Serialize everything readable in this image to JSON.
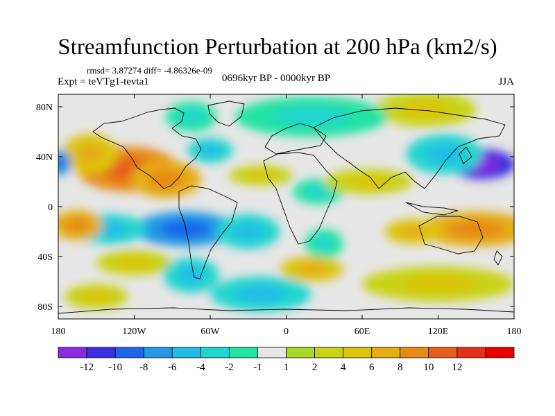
{
  "chart_data": {
    "type": "contour-map",
    "title": "Streamfunction Perturbation at 200 hPa (km2/s)",
    "stats_text": "rmsd= 3.87274 diff= -4.86326e-09",
    "experiment_text": "Expt = teVTg1-tevta1",
    "period_text": "0696kyr BP - 0000kyr BP",
    "season_text": "JJA",
    "projection": "cylindrical equidistant",
    "xlim": [
      -180,
      180
    ],
    "ylim": [
      -90,
      90
    ],
    "x_ticks": [
      {
        "value": -180,
        "label": "180"
      },
      {
        "value": -120,
        "label": "120W"
      },
      {
        "value": -60,
        "label": "60W"
      },
      {
        "value": 0,
        "label": "0"
      },
      {
        "value": 60,
        "label": "60E"
      },
      {
        "value": 120,
        "label": "120E"
      },
      {
        "value": 180,
        "label": "180"
      }
    ],
    "y_ticks": [
      {
        "value": 80,
        "label": "80N"
      },
      {
        "value": 40,
        "label": "40N"
      },
      {
        "value": 0,
        "label": "0"
      },
      {
        "value": -40,
        "label": "40S"
      },
      {
        "value": -80,
        "label": "80S"
      }
    ],
    "colorbar": {
      "colors": [
        "#8a2be2",
        "#3a2fe0",
        "#1e64e8",
        "#2398e6",
        "#21bce6",
        "#20d6cf",
        "#21e3a3",
        "#e6e6e6",
        "#a8d92a",
        "#c8d318",
        "#dcc50f",
        "#e5ad12",
        "#e68a14",
        "#e6601c",
        "#e42f1a",
        "#e60000"
      ],
      "labels": [
        "-12",
        "-10",
        "-8",
        "-6",
        "-4",
        "-2",
        "-1",
        "1",
        "2",
        "4",
        "6",
        "8",
        "10",
        "12"
      ]
    },
    "anomalies": [
      {
        "lon": -125,
        "lat": 30,
        "value": 9,
        "rx": 40,
        "ry": 18
      },
      {
        "lon": -95,
        "lat": 22,
        "value": 6,
        "rx": 28,
        "ry": 15
      },
      {
        "lon": -155,
        "lat": 42,
        "value": 4,
        "rx": 22,
        "ry": 16
      },
      {
        "lon": 155,
        "lat": 34,
        "value": -12,
        "rx": 26,
        "ry": 12
      },
      {
        "lon": -178,
        "lat": 35,
        "value": -8,
        "rx": 8,
        "ry": 10
      },
      {
        "lon": 125,
        "lat": 42,
        "value": -3,
        "rx": 30,
        "ry": 16
      },
      {
        "lon": 110,
        "lat": 78,
        "value": 3,
        "rx": 40,
        "ry": 14
      },
      {
        "lon": 20,
        "lat": 72,
        "value": -2,
        "rx": 60,
        "ry": 16
      },
      {
        "lon": -75,
        "lat": 72,
        "value": -2,
        "rx": 20,
        "ry": 12
      },
      {
        "lon": -60,
        "lat": 45,
        "value": -3,
        "rx": 18,
        "ry": 10
      },
      {
        "lon": 25,
        "lat": 12,
        "value": -2,
        "rx": 20,
        "ry": 10
      },
      {
        "lon": 65,
        "lat": 20,
        "value": 3,
        "rx": 35,
        "ry": 10
      },
      {
        "lon": -20,
        "lat": 25,
        "value": 2,
        "rx": 25,
        "ry": 8
      },
      {
        "lon": -80,
        "lat": -18,
        "value": -8,
        "rx": 40,
        "ry": 14
      },
      {
        "lon": -140,
        "lat": -18,
        "value": -3,
        "rx": 30,
        "ry": 12
      },
      {
        "lon": -165,
        "lat": -15,
        "value": 7,
        "rx": 20,
        "ry": 12
      },
      {
        "lon": -30,
        "lat": -20,
        "value": -3,
        "rx": 25,
        "ry": 14
      },
      {
        "lon": 30,
        "lat": -30,
        "value": -2,
        "rx": 15,
        "ry": 12
      },
      {
        "lon": 150,
        "lat": -18,
        "value": 6,
        "rx": 45,
        "ry": 14
      },
      {
        "lon": 100,
        "lat": -20,
        "value": 4,
        "rx": 22,
        "ry": 10
      },
      {
        "lon": 20,
        "lat": -50,
        "value": 5,
        "rx": 25,
        "ry": 10
      },
      {
        "lon": -120,
        "lat": -45,
        "value": 3,
        "rx": 30,
        "ry": 10
      },
      {
        "lon": -75,
        "lat": -55,
        "value": -4,
        "rx": 22,
        "ry": 14
      },
      {
        "lon": -20,
        "lat": -70,
        "value": -3,
        "rx": 40,
        "ry": 14
      },
      {
        "lon": 120,
        "lat": -62,
        "value": 3,
        "rx": 60,
        "ry": 14
      },
      {
        "lon": -150,
        "lat": -72,
        "value": 3,
        "rx": 25,
        "ry": 10
      }
    ]
  }
}
